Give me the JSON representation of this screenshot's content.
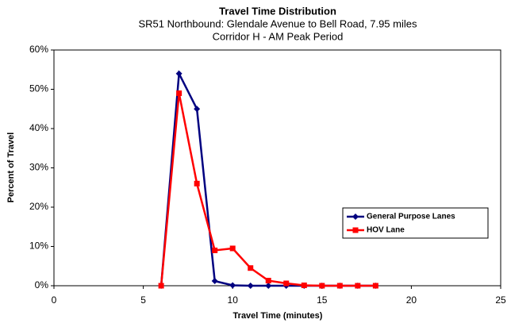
{
  "chart_data": {
    "type": "line",
    "title": "Travel Time Distribution",
    "subtitle": [
      "SR51 Northbound:  Glendale Avenue to Bell Road, 7.95 miles",
      "Corridor H  -  AM Peak Period"
    ],
    "x_label": "Travel Time (minutes)",
    "y_label": "Percent of Travel",
    "x": [
      6,
      7,
      8,
      9,
      10,
      11,
      12,
      13,
      14,
      15,
      16,
      17,
      18
    ],
    "series": [
      {
        "name": "General Purpose Lanes",
        "color": "#000080",
        "marker": "diamond",
        "values": [
          0,
          54,
          45,
          1.2,
          0.1,
          0,
          0,
          0,
          0,
          0,
          0,
          0,
          0
        ]
      },
      {
        "name": "HOV Lane",
        "color": "#ff0000",
        "marker": "square",
        "values": [
          0,
          49,
          26,
          9,
          9.5,
          4.5,
          1.3,
          0.6,
          0.1,
          0,
          0,
          0,
          0
        ]
      }
    ],
    "xlim": [
      0,
      25
    ],
    "xticks": [
      0,
      5,
      10,
      15,
      20,
      25
    ],
    "ylim": [
      0,
      60
    ],
    "yticks": [
      {
        "value": 0,
        "label": "0%"
      },
      {
        "value": 10,
        "label": "10%"
      },
      {
        "value": 20,
        "label": "20%"
      },
      {
        "value": 30,
        "label": "30%"
      },
      {
        "value": 40,
        "label": "40%"
      },
      {
        "value": 50,
        "label": "50%"
      },
      {
        "value": 60,
        "label": "60%"
      }
    ],
    "legend": "right"
  }
}
